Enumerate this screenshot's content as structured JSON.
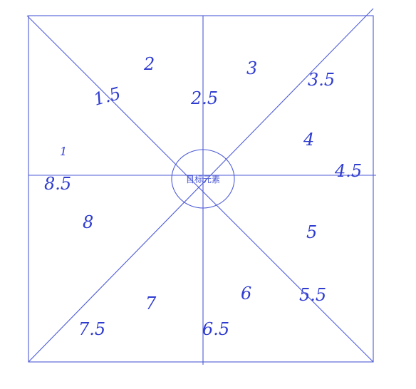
{
  "diagram": {
    "center_label": "目标元素",
    "colors": {
      "line": "#4d5bd6",
      "handwriting": "#2f3cd0",
      "background": "#ffffff"
    },
    "annotations": {
      "a_1_5": "1.5",
      "a_2": "2",
      "a_2_5": "2.5",
      "a_3": "3",
      "a_3_5": "3.5",
      "a_4": "4",
      "a_4_5": "4.5",
      "a_5": "5",
      "a_5_5": "5.5",
      "a_6": "6",
      "a_6_5": "6.5",
      "a_7": "7",
      "a_7_5": "7.5",
      "a_8": "8",
      "a_8_5": "8.5",
      "a_1": "1"
    }
  }
}
